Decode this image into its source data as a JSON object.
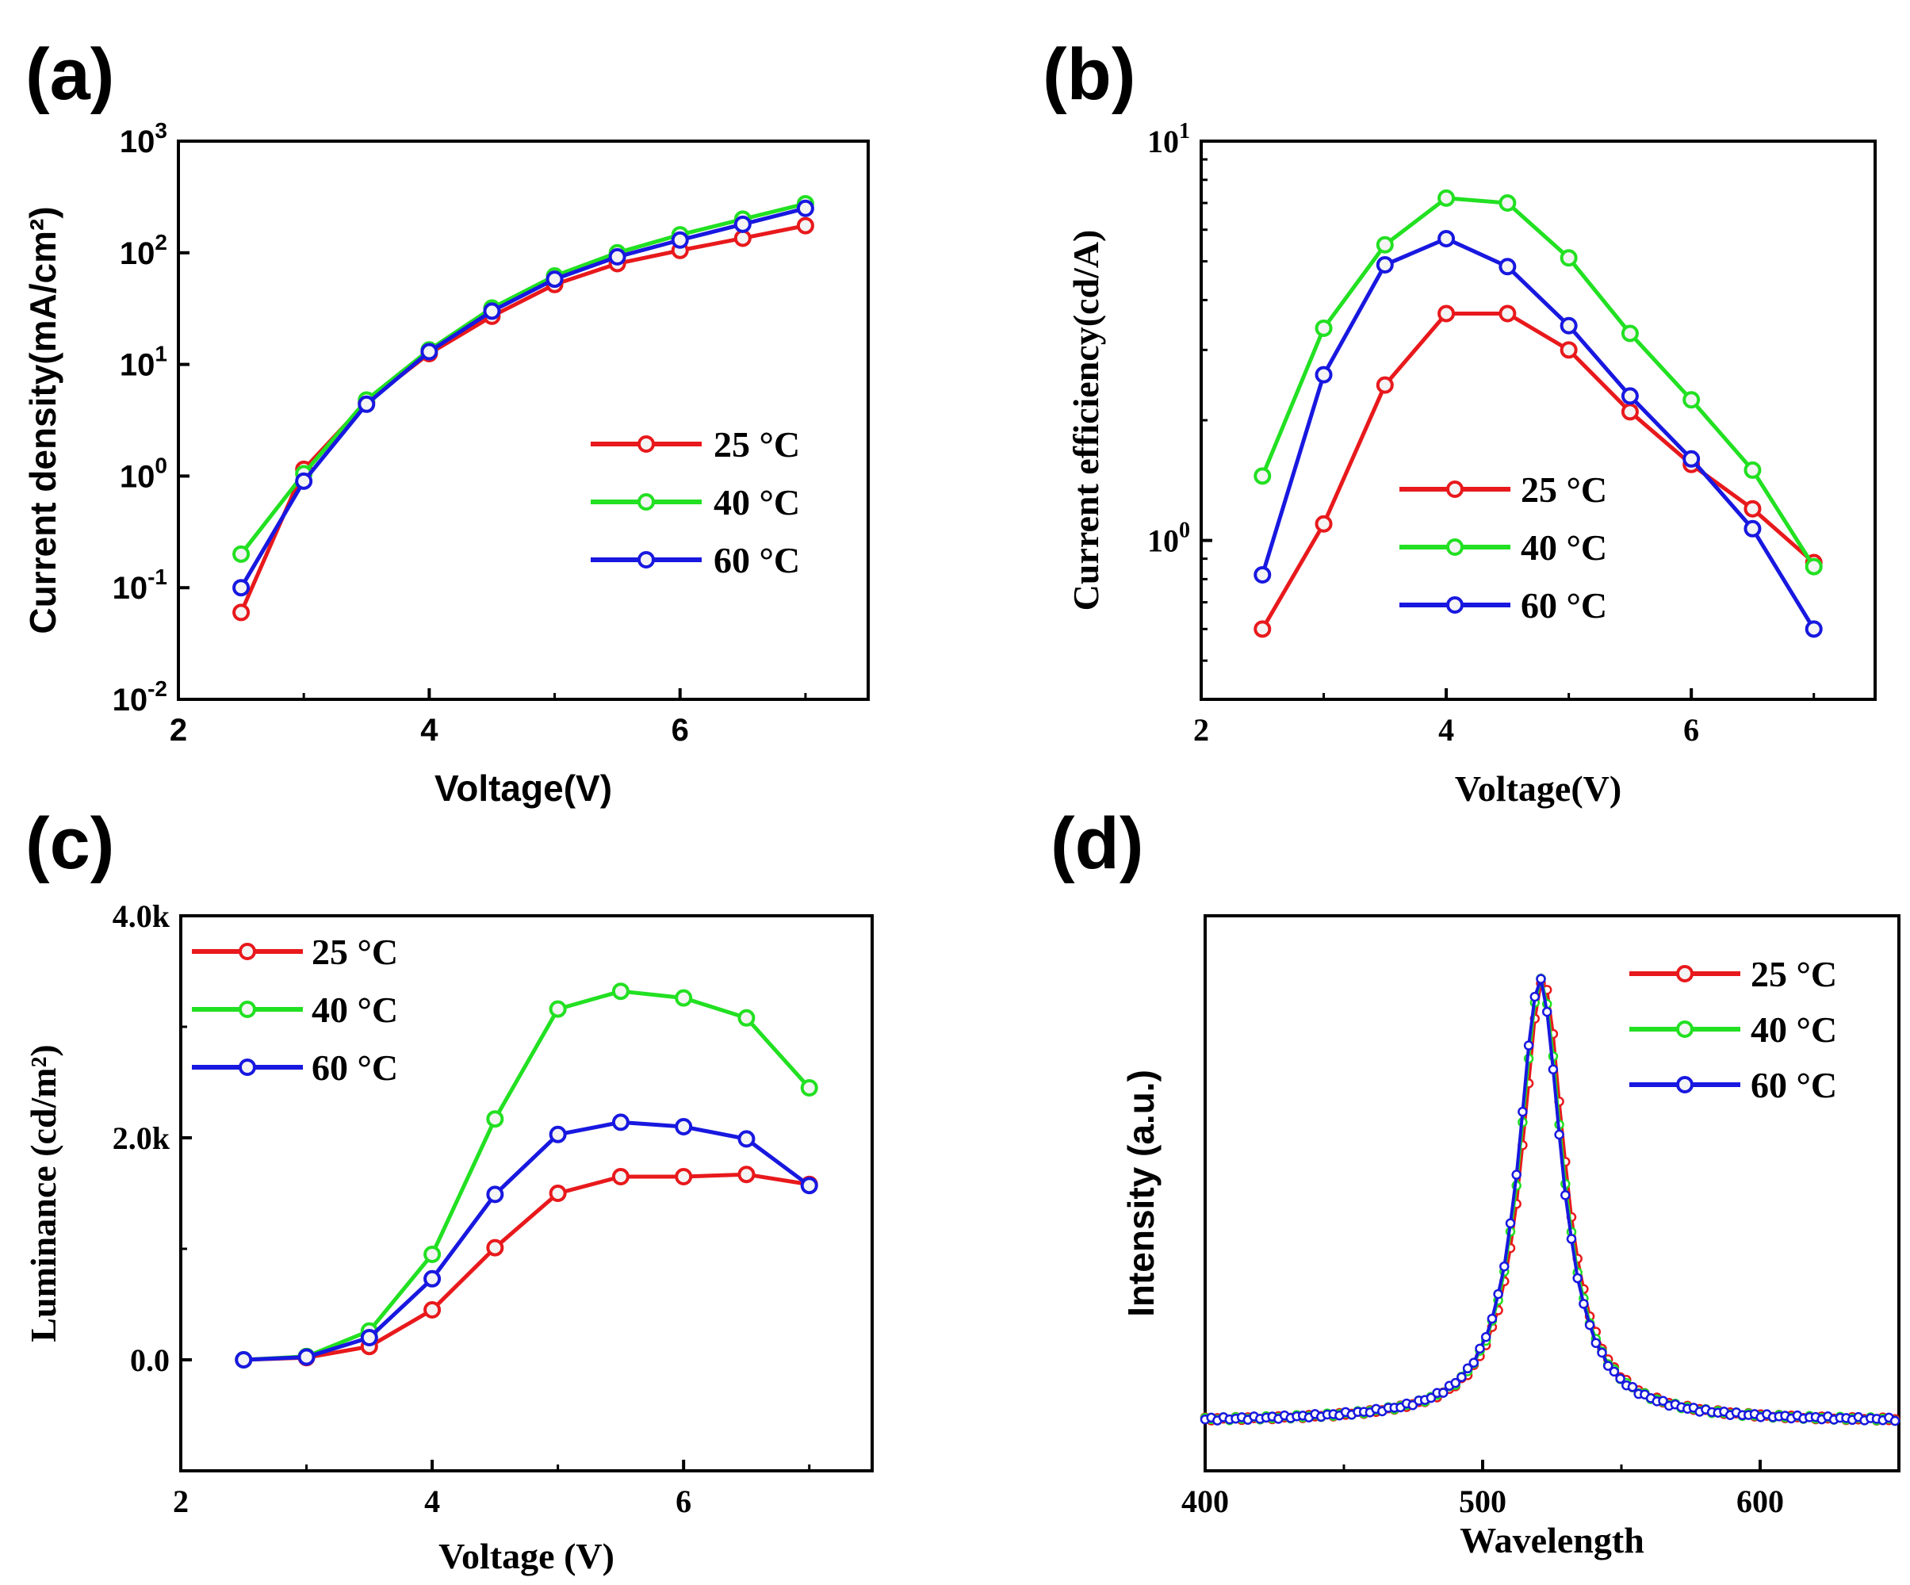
{
  "colors": {
    "25": "#e8191c",
    "40": "#22e022",
    "60": "#1818e0"
  },
  "chart_data": [
    {
      "id": "a",
      "panel_label": "(a)",
      "type": "line",
      "font": "sans",
      "xlabel": "Voltage(V)",
      "ylabel": "Current density(mA/cm²)",
      "xlim": [
        2,
        7.5
      ],
      "ylim": [
        -2,
        3
      ],
      "yscale": "log",
      "x_ticks": [
        {
          "v": 2,
          "label": "2"
        },
        {
          "v": 4,
          "label": "4"
        },
        {
          "v": 6,
          "label": "6"
        }
      ],
      "y_ticks": [
        {
          "v": -2,
          "base": "10",
          "exp": "-2"
        },
        {
          "v": -1,
          "base": "10",
          "exp": "-1"
        },
        {
          "v": 0,
          "base": "10",
          "exp": "0"
        },
        {
          "v": 1,
          "base": "10",
          "exp": "1"
        },
        {
          "v": 2,
          "base": "10",
          "exp": "2"
        },
        {
          "v": 3,
          "base": "10",
          "exp": "3"
        }
      ],
      "legend_position": "center-right",
      "x": [
        2.5,
        3.0,
        3.5,
        4.0,
        4.5,
        5.0,
        5.5,
        6.0,
        6.5,
        7.0
      ],
      "series": [
        {
          "name": "25 °C",
          "key": "25",
          "values": [
            0.06,
            1.15,
            4.6,
            12.5,
            27,
            52,
            80,
            105,
            135,
            175
          ]
        },
        {
          "name": "40 °C",
          "key": "40",
          "values": [
            0.2,
            1.05,
            4.8,
            13.5,
            32,
            62,
            100,
            145,
            200,
            275
          ]
        },
        {
          "name": "60 °C",
          "key": "60",
          "values": [
            0.1,
            0.9,
            4.4,
            13.0,
            30,
            58,
            92,
            130,
            180,
            250
          ]
        }
      ]
    },
    {
      "id": "b",
      "panel_label": "(b)",
      "type": "line",
      "font": "serif",
      "xlabel": "Voltage(V)",
      "ylabel": "Current efficiency(cd/A)",
      "xlim": [
        2,
        7.5
      ],
      "ylim": [
        0.4,
        10
      ],
      "yscale": "log",
      "x_ticks": [
        {
          "v": 2,
          "label": "2"
        },
        {
          "v": 4,
          "label": "4"
        },
        {
          "v": 6,
          "label": "6"
        }
      ],
      "y_ticks": [
        {
          "v": 1,
          "base": "10",
          "exp": "0"
        },
        {
          "v": 10,
          "base": "10",
          "exp": "1"
        }
      ],
      "legend_position": "lower-left",
      "x": [
        2.5,
        3.0,
        3.5,
        4.0,
        4.5,
        5.0,
        5.5,
        6.0,
        6.5,
        7.0
      ],
      "series": [
        {
          "name": "25 °C",
          "key": "25",
          "values": [
            0.6,
            1.1,
            2.45,
            3.7,
            3.7,
            3.0,
            2.1,
            1.55,
            1.2,
            0.88
          ]
        },
        {
          "name": "40 °C",
          "key": "40",
          "values": [
            1.45,
            3.4,
            5.5,
            7.2,
            7.0,
            5.1,
            3.3,
            2.25,
            1.5,
            0.86
          ]
        },
        {
          "name": "60 °C",
          "key": "60",
          "values": [
            0.82,
            2.6,
            4.9,
            5.7,
            4.85,
            3.45,
            2.3,
            1.6,
            1.07,
            0.6
          ]
        }
      ]
    },
    {
      "id": "c",
      "panel_label": "(c)",
      "type": "line",
      "font": "serif",
      "xlabel": "Voltage (V)",
      "ylabel": "Luminance (cd/m²)",
      "xlim": [
        2,
        7.5
      ],
      "ylim": [
        -1000,
        4000
      ],
      "yscale": "linear",
      "x_ticks": [
        {
          "v": 2,
          "label": "2"
        },
        {
          "v": 4,
          "label": "4"
        },
        {
          "v": 6,
          "label": "6"
        }
      ],
      "y_ticks": [
        {
          "v": 0,
          "label": "0.0"
        },
        {
          "v": 2000,
          "label": "2.0k"
        },
        {
          "v": 4000,
          "label": "4.0k"
        }
      ],
      "legend_position": "top-left",
      "x": [
        2.5,
        3.0,
        3.5,
        4.0,
        4.5,
        5.0,
        5.5,
        6.0,
        6.5,
        7.0
      ],
      "series": [
        {
          "name": "25 °C",
          "key": "25",
          "values": [
            0,
            20,
            120,
            450,
            1010,
            1500,
            1650,
            1650,
            1670,
            1580
          ]
        },
        {
          "name": "40 °C",
          "key": "40",
          "values": [
            0,
            30,
            260,
            950,
            2170,
            3160,
            3320,
            3260,
            3080,
            2450
          ]
        },
        {
          "name": "60 °C",
          "key": "60",
          "values": [
            0,
            25,
            200,
            730,
            1490,
            2030,
            2140,
            2100,
            1990,
            1570
          ]
        }
      ]
    },
    {
      "id": "d",
      "panel_label": "(d)",
      "type": "line",
      "font": "serif",
      "xlabel": "Wavelength",
      "ylabel": "Intensity (a.u.)",
      "ylabel_font": "sans",
      "xlim": [
        400,
        650
      ],
      "ylim": [
        -0.15,
        1.15
      ],
      "yscale": "linear",
      "x_ticks": [
        {
          "v": 400,
          "label": "400"
        },
        {
          "v": 500,
          "label": "500"
        },
        {
          "v": 600,
          "label": "600"
        }
      ],
      "y_ticks": [],
      "legend_position": "top-right",
      "peak_nm": 521,
      "fwhm_nm": 19,
      "baseline": -0.035,
      "sample_step_nm": 2.2,
      "series": [
        {
          "name": "25 °C",
          "key": "25",
          "offset_nm": 0.8,
          "peak": 1.0
        },
        {
          "name": "40 °C",
          "key": "40",
          "offset_nm": 0.0,
          "peak": 1.0
        },
        {
          "name": "60 °C",
          "key": "60",
          "offset_nm": -0.4,
          "peak": 1.0
        }
      ]
    }
  ]
}
